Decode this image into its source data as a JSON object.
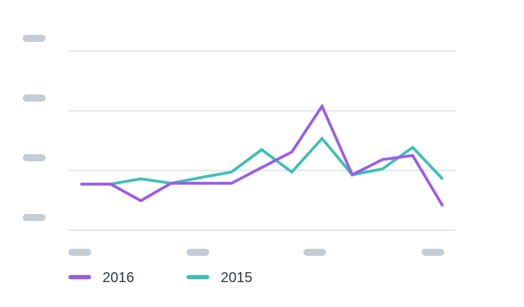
{
  "chart_data": {
    "type": "line",
    "categories": [
      "",
      "",
      "",
      "",
      "",
      "",
      "",
      "",
      "",
      "",
      "",
      "",
      ""
    ],
    "ylim": [
      0,
      4
    ],
    "grid": true,
    "legend_position": "bottom-left",
    "y_ticks_placeholder_count": 4,
    "x_ticks_placeholder_count": 4,
    "placeholder_color": "#c5ccd3",
    "gridline_color": "#dcdfe3",
    "series": [
      {
        "name": "2016",
        "color": "#9b5de5",
        "values": [
          1.03,
          1.03,
          0.66,
          1.05,
          1.05,
          1.05,
          1.4,
          1.75,
          2.77,
          1.24,
          1.58,
          1.67,
          0.54
        ]
      },
      {
        "name": "2015",
        "color": "#3fbfb5",
        "values": [
          1.03,
          1.03,
          1.15,
          1.05,
          1.18,
          1.3,
          1.8,
          1.3,
          2.05,
          1.24,
          1.37,
          1.85,
          1.14
        ]
      }
    ]
  }
}
